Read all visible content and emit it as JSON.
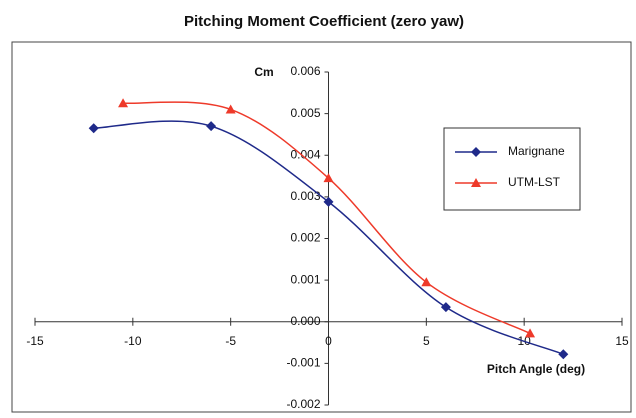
{
  "chart_data": {
    "type": "line",
    "title": "Pitching Moment Coefficient (zero yaw)",
    "y_label": "Cm",
    "x_label": "Pitch Angle (deg)",
    "xlim": [
      -15,
      15
    ],
    "xticks": [
      -15,
      -10,
      -5,
      0,
      5,
      10,
      15
    ],
    "ylim": [
      -0.002,
      0.006
    ],
    "yticks": [
      -0.002,
      -0.001,
      {
        "value": 0,
        "label": "0.000"
      },
      0.001,
      0.002,
      0.003,
      0.004,
      0.005,
      0.006
    ],
    "legend": "right",
    "series": [
      {
        "name": "Marignane",
        "color": "#1f2a8a",
        "marker": "diamond",
        "x": [
          -12,
          -6,
          0,
          6,
          12
        ],
        "values": [
          0.00465,
          0.0047,
          0.00288,
          0.00035,
          -0.00078
        ]
      },
      {
        "name": "UTM-LST",
        "color": "#ee3a2a",
        "marker": "triangle",
        "x": [
          -10.5,
          -5,
          0,
          5,
          10.3
        ],
        "values": [
          0.00525,
          0.0051,
          0.00345,
          0.00095,
          -0.00028
        ]
      }
    ]
  }
}
